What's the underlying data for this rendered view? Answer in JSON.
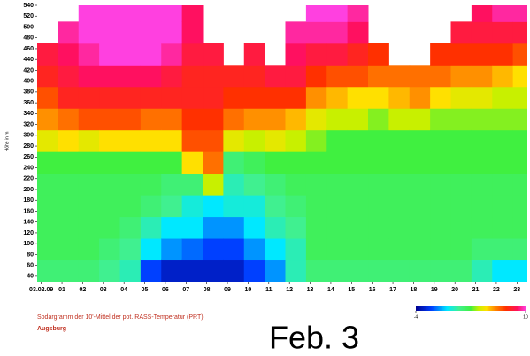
{
  "chart_data": {
    "type": "heatmap",
    "y_label": "Höhe in m",
    "caption": "Sodargramm der 10'-Mittel der pot. RASS-Temperatur (PRT)",
    "location": "Augsburg",
    "overlay": "Feb. 3",
    "xlim": [
      -0.2,
      23.5
    ],
    "xticks": [
      {
        "value": 0,
        "label": "03.02.09"
      },
      {
        "value": 1,
        "label": "01"
      },
      {
        "value": 2,
        "label": "02"
      },
      {
        "value": 3,
        "label": "03"
      },
      {
        "value": 4,
        "label": "04"
      },
      {
        "value": 5,
        "label": "05"
      },
      {
        "value": 6,
        "label": "06"
      },
      {
        "value": 7,
        "label": "07"
      },
      {
        "value": 8,
        "label": "08"
      },
      {
        "value": 9,
        "label": "09"
      },
      10,
      11,
      12,
      13,
      14,
      15,
      16,
      17,
      18,
      19,
      20,
      21,
      22,
      23
    ],
    "ylim": [
      30,
      540
    ],
    "yticks": [
      40,
      60,
      80,
      100,
      120,
      140,
      160,
      180,
      200,
      220,
      240,
      260,
      280,
      300,
      320,
      340,
      360,
      380,
      400,
      420,
      440,
      460,
      480,
      500,
      520,
      540
    ],
    "x_bins": [
      -0.2,
      0.8,
      1.8,
      2.8,
      3.8,
      4.8,
      5.8,
      6.8,
      7.8,
      8.8,
      9.8,
      10.8,
      11.8,
      12.8,
      13.8,
      14.8,
      15.8,
      16.8,
      17.8,
      18.8,
      19.8,
      20.8,
      21.8,
      22.8,
      23.5
    ],
    "y_bins": [
      30,
      70,
      110,
      150,
      190,
      230,
      270,
      310,
      350,
      390,
      430,
      470,
      510,
      540
    ],
    "values": [
      [
        2,
        2.5,
        2.5,
        2.5,
        2.5,
        3,
        4.5,
        6,
        7,
        8,
        8.5,
        null,
        null
      ],
      [
        2,
        2.5,
        2.5,
        2.5,
        2.5,
        3,
        5,
        6.5,
        8,
        8.5,
        9,
        9.5,
        null
      ],
      [
        2,
        2.5,
        2.5,
        2.5,
        2.5,
        3,
        4.5,
        7,
        8,
        9,
        9.5,
        10,
        10
      ],
      [
        1.5,
        2,
        2.5,
        2.5,
        2.5,
        3,
        5,
        7,
        8,
        9,
        10,
        10,
        10
      ],
      [
        1,
        1.5,
        2,
        2.5,
        2.5,
        3,
        5,
        7,
        8,
        9,
        10,
        10,
        10
      ],
      [
        -2,
        0,
        1,
        2,
        2.5,
        3,
        5,
        6.5,
        8,
        9,
        10,
        10,
        10
      ],
      [
        -3,
        -1,
        0,
        1.5,
        2,
        3,
        5,
        6.5,
        8,
        8.5,
        9.5,
        10,
        10
      ],
      [
        -3,
        -1.5,
        0,
        0.5,
        2,
        5,
        7,
        7.5,
        8,
        8,
        8.5,
        9,
        9
      ],
      [
        -3,
        -2,
        -1,
        0,
        4,
        6.5,
        7,
        7.5,
        8,
        8,
        8.5,
        null,
        null
      ],
      [
        -3,
        -2,
        -1,
        0.5,
        1,
        2,
        4.5,
        6.5,
        7.5,
        8,
        null,
        null,
        null
      ],
      [
        -2,
        -1,
        0,
        0.5,
        1.5,
        2.5,
        4,
        6,
        7.5,
        8,
        8.5,
        null,
        null
      ],
      [
        -1,
        0,
        1,
        1.5,
        2,
        3,
        4.5,
        6,
        7.5,
        8.5,
        null,
        null,
        null
      ],
      [
        1,
        1,
        1.5,
        2,
        2.5,
        3,
        4,
        5.5,
        7.5,
        8.5,
        9,
        9.5,
        null
      ],
      [
        2,
        2.5,
        2.5,
        2.5,
        2.5,
        3,
        3.5,
        4.5,
        6,
        7.5,
        8.5,
        9.5,
        10
      ],
      [
        2,
        2.5,
        2.5,
        2.5,
        2.5,
        3,
        3,
        4,
        5.5,
        7,
        8.5,
        9.5,
        10
      ],
      [
        2,
        2.5,
        2.5,
        2.5,
        2.5,
        3,
        3,
        4,
        5,
        7,
        8,
        9,
        9.5
      ],
      [
        2,
        2.5,
        2.5,
        2.5,
        2.5,
        3,
        3,
        3.5,
        5,
        6.5,
        7.5,
        null,
        null
      ],
      [
        2,
        2.5,
        2.5,
        2.5,
        2.5,
        3,
        3,
        4,
        5.5,
        6.5,
        null,
        null,
        null
      ],
      [
        2,
        2.5,
        2.5,
        2.5,
        2.5,
        3,
        3,
        4,
        6,
        6.5,
        null,
        null,
        null
      ],
      [
        2,
        2.5,
        2.5,
        2.5,
        2.5,
        3,
        3,
        3.5,
        5,
        6.5,
        7.5,
        null,
        null
      ],
      [
        2,
        2.5,
        2.5,
        2.5,
        2.5,
        3,
        3,
        3.5,
        4.5,
        6,
        7.5,
        8.5,
        null
      ],
      [
        1,
        2,
        2.5,
        2.5,
        2.5,
        3,
        3,
        3.5,
        4.5,
        6,
        7.5,
        8.5,
        9
      ],
      [
        0,
        2,
        2.5,
        2.5,
        2.5,
        3,
        3,
        3.5,
        4,
        5.5,
        7.5,
        8.5,
        9.5
      ],
      [
        0,
        2,
        2.5,
        2.5,
        2.5,
        3,
        3,
        3.5,
        4,
        5,
        7,
        8.5,
        9.5
      ]
    ],
    "clim": [
      -4,
      10
    ],
    "cticks": [
      -4,
      10
    ],
    "colorscale": [
      [
        -4,
        "#000090"
      ],
      [
        -2,
        "#0040ff"
      ],
      [
        0,
        "#00e8ff"
      ],
      [
        1.5,
        "#40f090"
      ],
      [
        3,
        "#40f040"
      ],
      [
        4,
        "#c8f000"
      ],
      [
        5,
        "#ffe000"
      ],
      [
        6,
        "#ff9000"
      ],
      [
        7.5,
        "#ff3000"
      ],
      [
        9,
        "#ff1060"
      ],
      [
        10,
        "#ff40e0"
      ]
    ]
  }
}
